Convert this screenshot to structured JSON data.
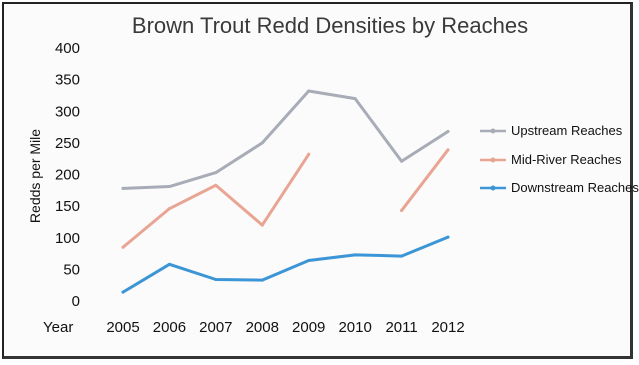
{
  "chart_data": {
    "type": "line",
    "title": "Brown Trout Redd Densities by Reaches",
    "xlabel": "Year",
    "ylabel": "Redds per Mile",
    "ylim": [
      0,
      400
    ],
    "yticks": [
      0,
      50,
      100,
      150,
      200,
      250,
      300,
      350,
      400
    ],
    "categories": [
      "2005",
      "2006",
      "2007",
      "2008",
      "2009",
      "2010",
      "2011",
      "2012"
    ],
    "grid": false,
    "legend": "right",
    "series": [
      {
        "name": "Upstream Reaches",
        "color": "#a7acb6",
        "values": [
          178,
          181,
          203,
          250,
          332,
          320,
          221,
          268
        ]
      },
      {
        "name": "Mid-River Reaches",
        "color": "#e9a593",
        "values": [
          85,
          146,
          183,
          120,
          232,
          null,
          143,
          239
        ]
      },
      {
        "name": "Downstream Reaches",
        "color": "#3c95d6",
        "values": [
          14,
          58,
          34,
          33,
          64,
          73,
          71,
          101
        ]
      }
    ]
  }
}
